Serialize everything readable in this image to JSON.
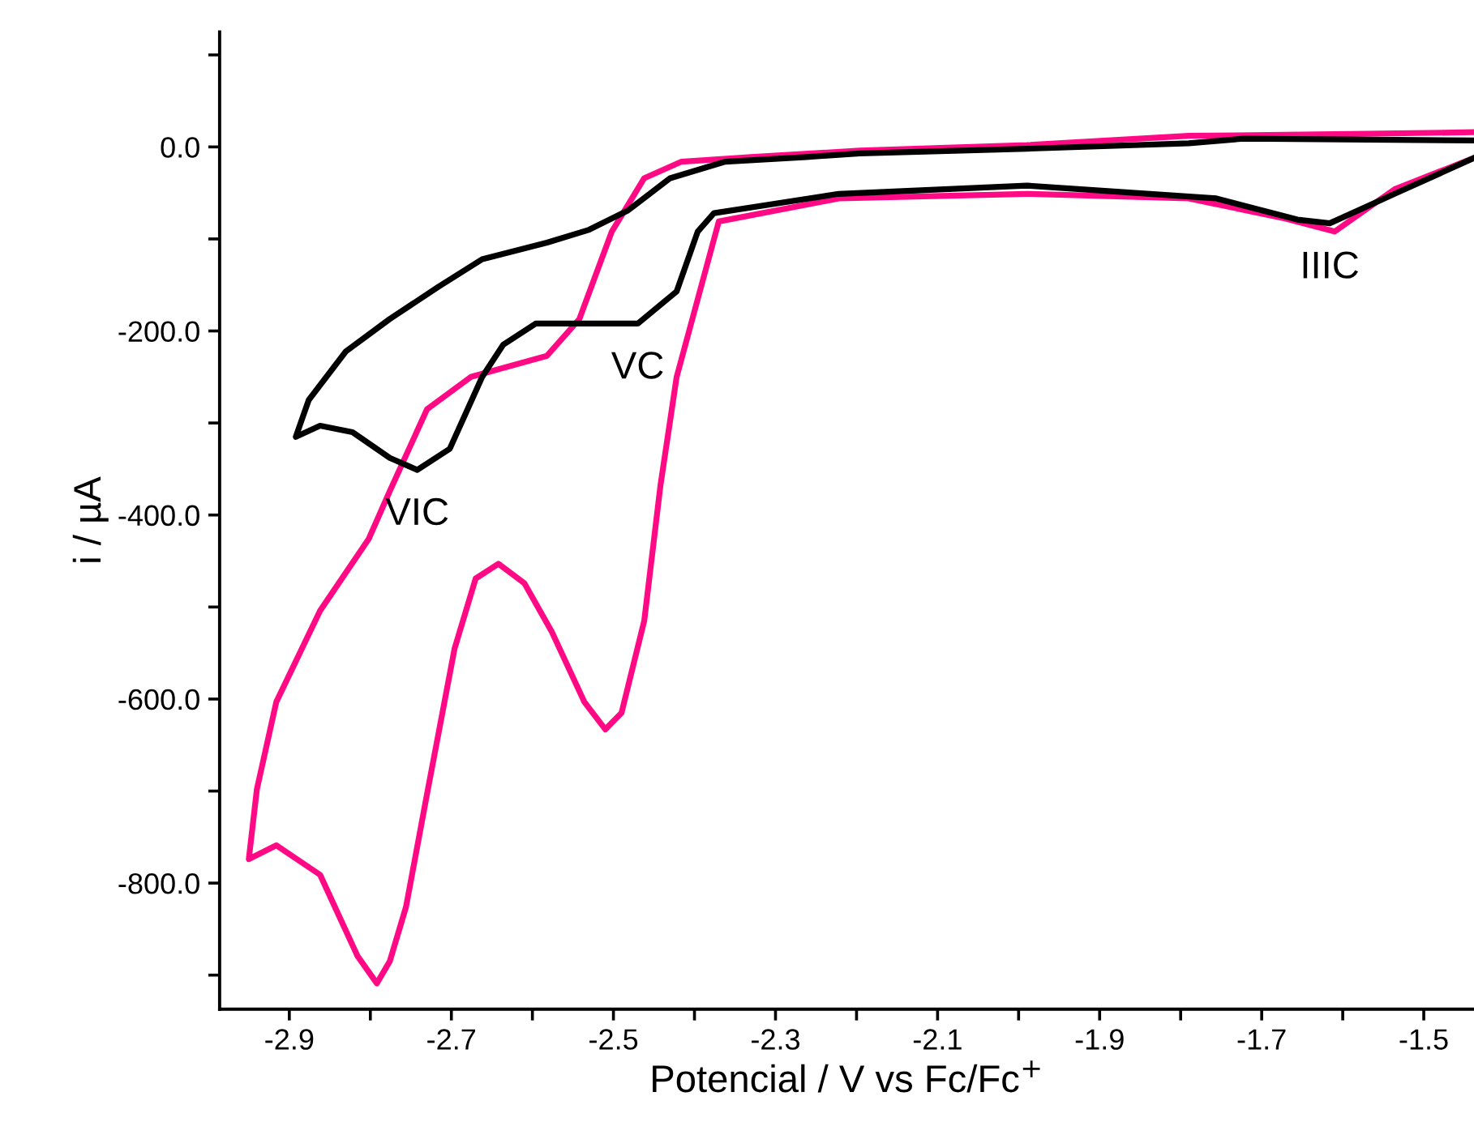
{
  "chart_data": {
    "type": "line",
    "xlabel": "Potencial / V vs Fc/Fc$^{+}$",
    "ylabel": "i / µA",
    "xlim": [
      -2.986,
      -1.438
    ],
    "ylim": [
      -937,
      125
    ],
    "xticks": [
      {
        "value": -2.9,
        "label": "-2.9"
      },
      {
        "value": -2.8,
        "label": null
      },
      {
        "value": -2.7,
        "label": "-2.7"
      },
      {
        "value": -2.6,
        "label": null
      },
      {
        "value": -2.5,
        "label": "-2.5"
      },
      {
        "value": -2.4,
        "label": null
      },
      {
        "value": -2.3,
        "label": "-2.3"
      },
      {
        "value": -2.2,
        "label": null
      },
      {
        "value": -2.1,
        "label": "-2.1"
      },
      {
        "value": -2.0,
        "label": null
      },
      {
        "value": -1.9,
        "label": "-1.9"
      },
      {
        "value": -1.8,
        "label": null
      },
      {
        "value": -1.7,
        "label": "-1.7"
      },
      {
        "value": -1.6,
        "label": null
      },
      {
        "value": -1.5,
        "label": "-1.5"
      }
    ],
    "yticks": [
      {
        "value": -900,
        "label": null
      },
      {
        "value": -800,
        "label": "-800.0"
      },
      {
        "value": -700,
        "label": null
      },
      {
        "value": -600,
        "label": "-600.0"
      },
      {
        "value": -500,
        "label": null
      },
      {
        "value": -400,
        "label": "-400.0"
      },
      {
        "value": -300,
        "label": null
      },
      {
        "value": -200,
        "label": "-200.0"
      },
      {
        "value": -100,
        "label": null
      },
      {
        "value": 0,
        "label": "0.0"
      },
      {
        "value": 100,
        "label": null
      }
    ],
    "grid": false,
    "legend": false,
    "marker": "none",
    "line_style": "solid",
    "series": [
      {
        "color": "#ff0a84",
        "x": [
          -1.438,
          -1.536,
          -1.61,
          -1.67,
          -1.79,
          -1.99,
          -2.222,
          -2.37,
          -2.422,
          -2.442,
          -2.462,
          -2.49,
          -2.51,
          -2.536,
          -2.576,
          -2.61,
          -2.642,
          -2.67,
          -2.696,
          -2.73,
          -2.756,
          -2.776,
          -2.792,
          -2.816,
          -2.862,
          -2.916,
          -2.95,
          -2.94,
          -2.916,
          -2.862,
          -2.802,
          -2.776,
          -2.73,
          -2.676,
          -2.582,
          -2.542,
          -2.502,
          -2.462,
          -2.416,
          -2.33,
          -2.196,
          -1.99,
          -1.79,
          -1.59,
          -1.438
        ],
        "values": [
          -12,
          -46,
          -92,
          -78,
          -56,
          -51,
          -56,
          -81,
          -250,
          -368,
          -515,
          -615,
          -633,
          -603,
          -527,
          -474,
          -453,
          -469,
          -545,
          -703,
          -826,
          -885,
          -909,
          -879,
          -791,
          -759,
          -774,
          -698,
          -603,
          -504,
          -426,
          -374,
          -285,
          -250,
          -227,
          -187,
          -92,
          -34,
          -16,
          -11,
          -4,
          2,
          12,
          14,
          16
        ]
      },
      {
        "color": "#000000",
        "x": [
          -1.438,
          -1.536,
          -1.616,
          -1.656,
          -1.756,
          -1.99,
          -2.222,
          -2.376,
          -2.396,
          -2.422,
          -2.47,
          -2.53,
          -2.596,
          -2.636,
          -2.662,
          -2.702,
          -2.742,
          -2.776,
          -2.822,
          -2.862,
          -2.892,
          -2.876,
          -2.83,
          -2.776,
          -2.716,
          -2.662,
          -2.582,
          -2.53,
          -2.482,
          -2.43,
          -2.362,
          -2.262,
          -2.196,
          -1.99,
          -1.79,
          -1.722,
          -1.438
        ],
        "values": [
          -12,
          -51,
          -83,
          -79,
          -56,
          -42,
          -51,
          -72,
          -92,
          -157,
          -192,
          -192,
          -192,
          -215,
          -250,
          -328,
          -351,
          -338,
          -310,
          -303,
          -315,
          -275,
          -222,
          -187,
          -152,
          -122,
          -104,
          -90,
          -69,
          -34,
          -16,
          -11,
          -7,
          -2,
          4,
          9,
          7
        ]
      }
    ],
    "annotations": [
      {
        "text": "VC",
        "x": -2.47,
        "y": -192
      },
      {
        "text": "VIC",
        "x": -2.742,
        "y": -351
      },
      {
        "text": "IIIC",
        "x": -1.616,
        "y": -83
      }
    ]
  }
}
